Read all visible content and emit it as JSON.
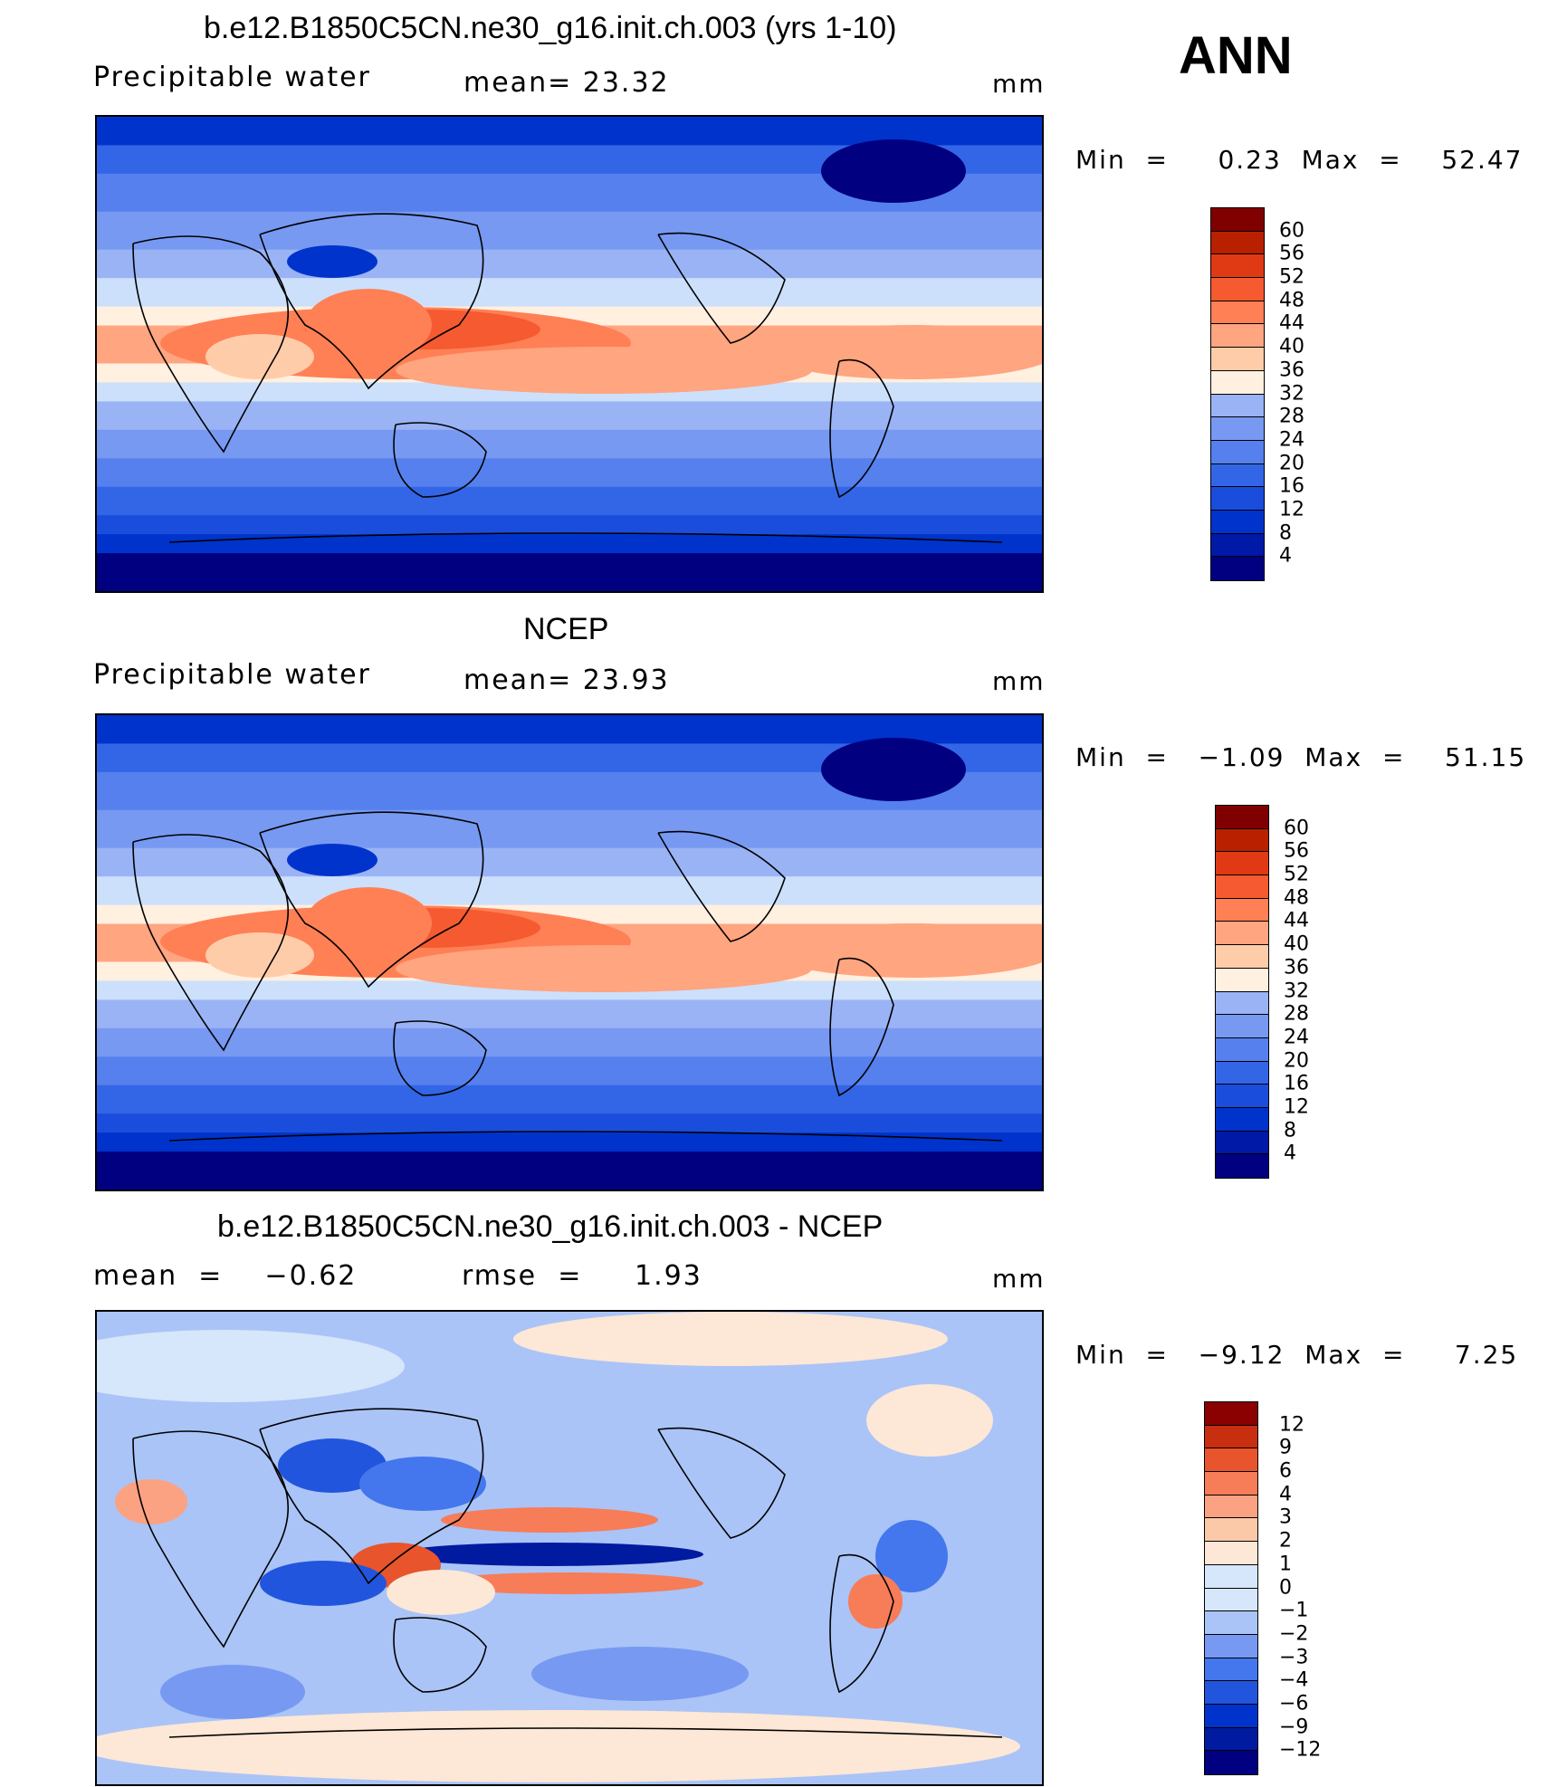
{
  "header": {
    "ann": "ANN"
  },
  "panels": [
    {
      "title": "b.e12.B1850C5CN.ne30_g16.init.ch.003 (yrs 1-10)",
      "left_label": "Precipitable  water",
      "mid_label": "mean=   23.32",
      "units": "mm",
      "minmax": "Min  =     0.23  Max  =    52.47",
      "type": "field",
      "colorbar_labels": [
        "60",
        "56",
        "52",
        "48",
        "44",
        "40",
        "36",
        "32",
        "28",
        "24",
        "20",
        "16",
        "12",
        "8",
        "4"
      ]
    },
    {
      "title": "NCEP",
      "left_label": "Precipitable  water",
      "mid_label": "mean=   23.93",
      "units": "mm",
      "minmax": "Min  =   −1.09  Max  =    51.15",
      "type": "field",
      "colorbar_labels": [
        "60",
        "56",
        "52",
        "48",
        "44",
        "40",
        "36",
        "32",
        "28",
        "24",
        "20",
        "16",
        "12",
        "8",
        "4"
      ]
    },
    {
      "title": "b.e12.B1850C5CN.ne30_g16.init.ch.003 - NCEP",
      "left_label": "mean  =    −0.62",
      "mid_label": "rmse  =     1.93",
      "units": "mm",
      "minmax": "Min  =   −9.12  Max  =     7.25",
      "type": "diff",
      "colorbar_labels": [
        "12",
        "9",
        "6",
        "4",
        "3",
        "2",
        "1",
        "0",
        "−1",
        "−2",
        "−3",
        "−4",
        "−6",
        "−9",
        "−12"
      ]
    }
  ],
  "colors": {
    "field_scale": [
      "#000080",
      "#0019a6",
      "#0033cc",
      "#1a4ddb",
      "#3366e6",
      "#5580ee",
      "#7799f2",
      "#99b3f5",
      "#cce0fb",
      "#fff0e0",
      "#ffccaa",
      "#ffa580",
      "#ff8055",
      "#f55a30",
      "#e03a15",
      "#b82000",
      "#800000"
    ],
    "diff_scale": [
      "#000080",
      "#001aa0",
      "#0033cc",
      "#2255dd",
      "#4477ee",
      "#7799f2",
      "#aac4f7",
      "#d6e6fb",
      "#fde7d6",
      "#fcc9a8",
      "#fba283",
      "#f77c58",
      "#e8552c",
      "#c82e10",
      "#8b0000"
    ]
  },
  "chart_data": [
    {
      "type": "heatmap",
      "title": "b.e12.B1850C5CN.ne30_g16.init.ch.003 (yrs 1-10)",
      "subtitle": "Precipitable water",
      "units": "mm",
      "mean": 23.32,
      "min": 0.23,
      "max": 52.47,
      "contour_levels": [
        4,
        8,
        12,
        16,
        20,
        24,
        28,
        32,
        36,
        40,
        44,
        48,
        52,
        56,
        60
      ]
    },
    {
      "type": "heatmap",
      "title": "NCEP",
      "subtitle": "Precipitable water",
      "units": "mm",
      "mean": 23.93,
      "min": -1.09,
      "max": 51.15,
      "contour_levels": [
        4,
        8,
        12,
        16,
        20,
        24,
        28,
        32,
        36,
        40,
        44,
        48,
        52,
        56,
        60
      ]
    },
    {
      "type": "heatmap",
      "title": "b.e12.B1850C5CN.ne30_g16.init.ch.003 - NCEP",
      "units": "mm",
      "mean": -0.62,
      "rmse": 1.93,
      "min": -9.12,
      "max": 7.25,
      "contour_levels": [
        -12,
        -9,
        -6,
        -4,
        -3,
        -2,
        -1,
        0,
        1,
        2,
        3,
        4,
        6,
        9,
        12
      ]
    }
  ]
}
